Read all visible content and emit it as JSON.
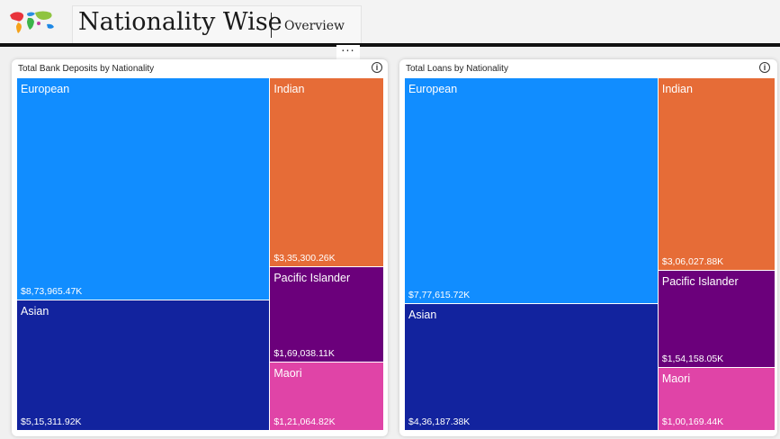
{
  "header": {
    "title": "Nationality Wise",
    "subtitle": "Overview",
    "logo_icon": "world-map-icon",
    "more_label": "···"
  },
  "colors": {
    "European": "#118dff",
    "Asian": "#12239e",
    "Indian": "#e66c37",
    "Pacific Islander": "#6b007b",
    "Maori": "#e044a7"
  },
  "charts": {
    "deposits": {
      "title": "Total Bank Deposits by Nationality",
      "info_label": "i",
      "tiles": [
        {
          "name": "European",
          "value": "$8,73,965.47K"
        },
        {
          "name": "Asian",
          "value": "$5,15,311.92K"
        },
        {
          "name": "Indian",
          "value": "$3,35,300.26K"
        },
        {
          "name": "Pacific Islander",
          "value": "$1,69,038.11K"
        },
        {
          "name": "Maori",
          "value": "$1,21,064.82K"
        }
      ]
    },
    "loans": {
      "title": "Total Loans by Nationality",
      "info_label": "i",
      "tiles": [
        {
          "name": "European",
          "value": "$7,77,615.72K"
        },
        {
          "name": "Asian",
          "value": "$4,36,187.38K"
        },
        {
          "name": "Indian",
          "value": "$3,06,027.88K"
        },
        {
          "name": "Pacific Islander",
          "value": "$1,54,158.05K"
        },
        {
          "name": "Maori",
          "value": "$1,00,169.44K"
        }
      ]
    }
  },
  "chart_data": [
    {
      "type": "treemap",
      "title": "Total Bank Deposits by Nationality",
      "categories": [
        "European",
        "Asian",
        "Indian",
        "Pacific Islander",
        "Maori"
      ],
      "values": [
        873965.47,
        515311.92,
        335300.26,
        169038.11,
        121064.82
      ]
    },
    {
      "type": "treemap",
      "title": "Total Loans by Nationality",
      "categories": [
        "European",
        "Asian",
        "Indian",
        "Pacific Islander",
        "Maori"
      ],
      "values": [
        777615.72,
        436187.38,
        306027.88,
        154158.05,
        100169.44
      ]
    }
  ]
}
